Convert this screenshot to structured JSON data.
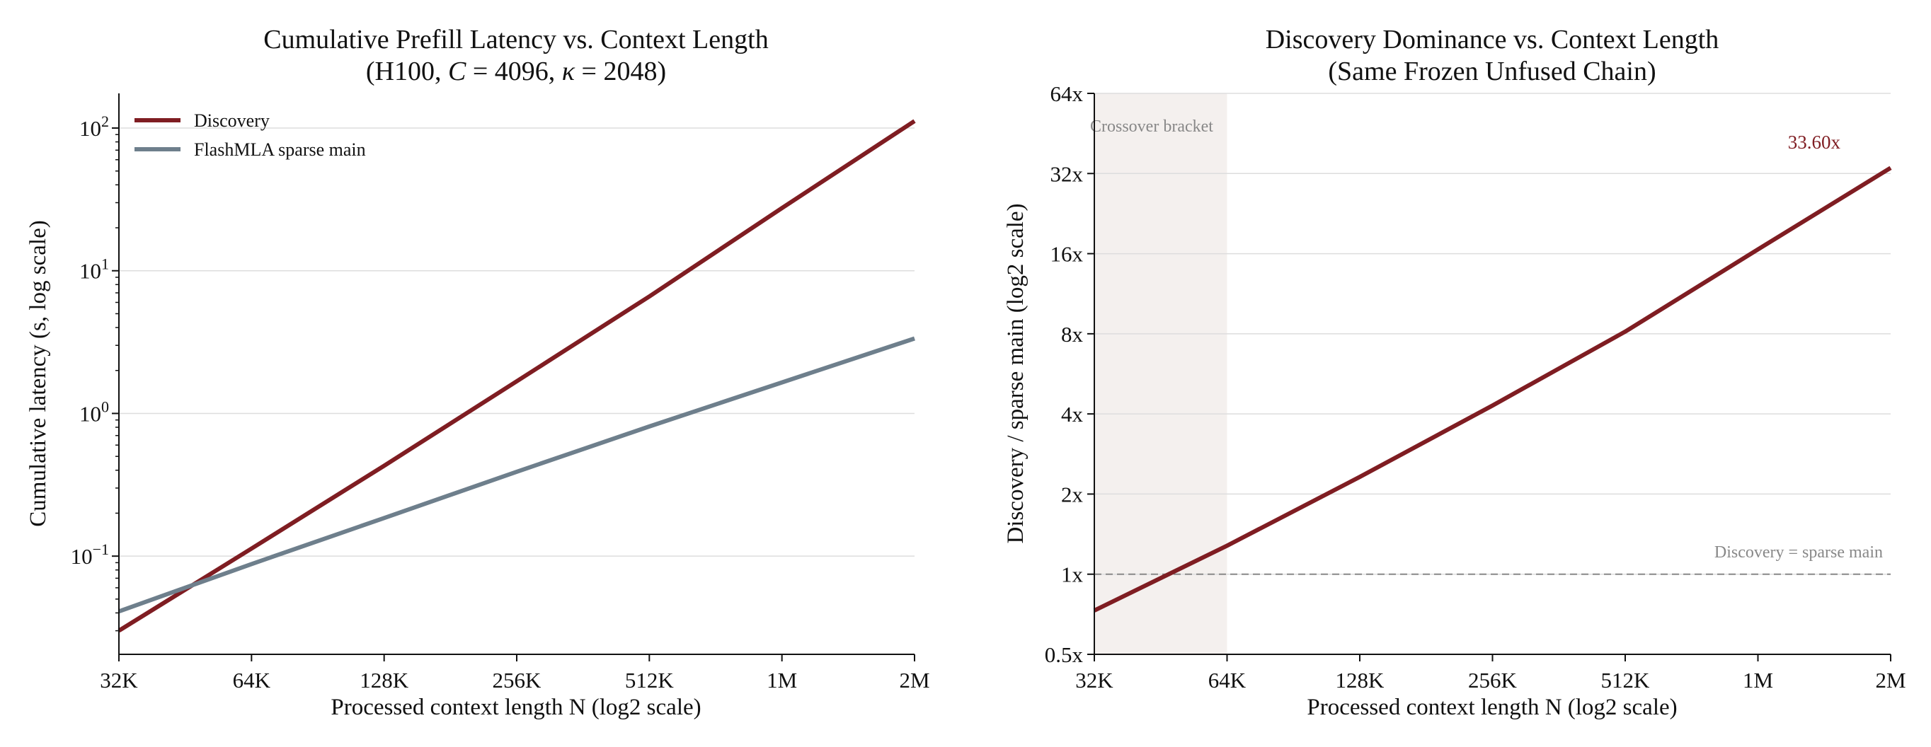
{
  "chart_data": [
    {
      "type": "line",
      "title": "Cumulative Prefill Latency vs. Context Length",
      "subtitle_parts": [
        "(H100, ",
        "C",
        " = 4096, ",
        "κ",
        " = 2048)"
      ],
      "xlabel": "Processed context length N (log2 scale)",
      "ylabel": "Cumulative latency (s, log scale)",
      "x_scale": "log2",
      "y_scale": "log10",
      "x_ticks": [
        32768,
        65536,
        131072,
        262144,
        524288,
        1048576,
        2097152
      ],
      "x_tick_labels": [
        "32K",
        "64K",
        "128K",
        "256K",
        "512K",
        "1M",
        "2M"
      ],
      "y_ticks": [
        0.1,
        1,
        10,
        100
      ],
      "y_tick_labels": [
        [
          "10",
          "−1"
        ],
        [
          "10",
          "0"
        ],
        [
          "10",
          "1"
        ],
        [
          "10",
          "2"
        ]
      ],
      "xlim": [
        32768,
        2097152
      ],
      "ylim": [
        0.0205,
        175
      ],
      "grid": "horizontal",
      "legend": "top-left",
      "x": [
        32768,
        65536,
        131072,
        262144,
        524288,
        1048576,
        2097152
      ],
      "series": [
        {
          "name": "Discovery",
          "color": "#7f1d22",
          "values": [
            0.03,
            0.113,
            0.43,
            1.68,
            6.6,
            27.5,
            112
          ]
        },
        {
          "name": "FlashMLA sparse main",
          "color": "#6e7f8c",
          "values": [
            0.041,
            0.088,
            0.185,
            0.39,
            0.81,
            1.65,
            3.35
          ]
        }
      ]
    },
    {
      "type": "line",
      "title": "Discovery Dominance vs. Context Length",
      "subtitle": "(Same Frozen Unfused Chain)",
      "xlabel": "Processed context length N (log2 scale)",
      "ylabel": "Discovery / sparse main (log2 scale)",
      "x_scale": "log2",
      "y_scale": "log2",
      "x_ticks": [
        32768,
        65536,
        131072,
        262144,
        524288,
        1048576,
        2097152
      ],
      "x_tick_labels": [
        "32K",
        "64K",
        "128K",
        "256K",
        "512K",
        "1M",
        "2M"
      ],
      "y_ticks": [
        0.5,
        1,
        2,
        4,
        8,
        16,
        32,
        64
      ],
      "y_tick_labels": [
        "0.5x",
        "1x",
        "2x",
        "4x",
        "8x",
        "16x",
        "32x",
        "64x"
      ],
      "xlim": [
        32768,
        2097152
      ],
      "ylim": [
        0.5,
        64
      ],
      "grid": "horizontal",
      "shaded_region": {
        "x": [
          32768,
          65536
        ],
        "label": "Crossover bracket",
        "color": "#f4f0ee"
      },
      "reference_line": {
        "y": 1,
        "label": "Discovery = sparse main",
        "color": "#888888"
      },
      "x": [
        32768,
        65536,
        131072,
        262144,
        524288,
        1048576,
        2097152
      ],
      "series": [
        {
          "name": "Discovery / sparse main",
          "color": "#7f1d22",
          "values": [
            0.73,
            1.28,
            2.32,
            4.3,
            8.15,
            16.6,
            33.6
          ]
        }
      ],
      "end_label": "33.60x"
    }
  ]
}
